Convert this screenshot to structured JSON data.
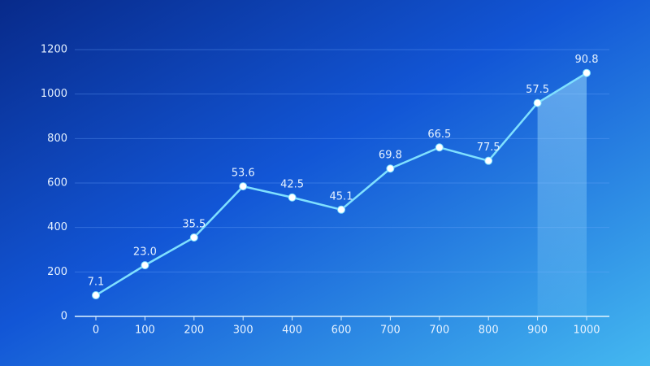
{
  "chart_data": {
    "type": "line",
    "categories": [
      "0",
      "100",
      "200",
      "300",
      "400",
      "600",
      "700",
      "700",
      "800",
      "900",
      "1000"
    ],
    "series": [
      {
        "color": "#7fe0ff",
        "values": [
          95,
          230,
          355,
          585,
          535,
          480,
          665,
          760,
          700,
          960,
          1095
        ]
      }
    ],
    "annotations": [
      "7.1",
      "23.0",
      "35.5",
      "53.6",
      "42.5",
      "45.1",
      "69.8",
      "66.5",
      "77.5",
      "57.5",
      "90.8"
    ],
    "ylim": [
      0,
      1200
    ],
    "yticks": [
      0,
      200,
      400,
      600,
      800,
      1000,
      1200
    ],
    "grid": true
  }
}
